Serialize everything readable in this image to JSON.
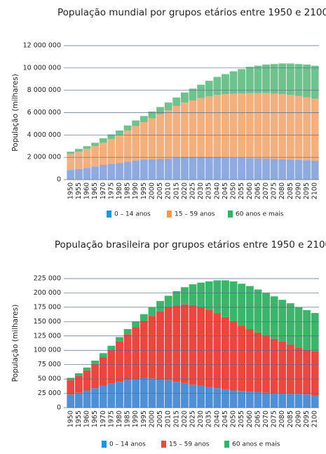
{
  "chart_data": [
    {
      "type": "stacked-bar",
      "title": "População mundial por grupos etários entre 1950 e 2100",
      "y_label": "População (milhares)",
      "x": [
        1950,
        1955,
        1960,
        1965,
        1970,
        1975,
        1980,
        1985,
        1990,
        1995,
        2000,
        2005,
        2010,
        2015,
        2020,
        2025,
        2030,
        2035,
        2040,
        2045,
        2050,
        2055,
        2060,
        2065,
        2070,
        2075,
        2080,
        2085,
        2090,
        2095,
        2100
      ],
      "series": [
        {
          "name": "0 – 14 anos",
          "color": "#8eaade",
          "legend_color": "#1b96d6",
          "values": [
            870000,
            960000,
            1050000,
            1180000,
            1320000,
            1420000,
            1500000,
            1600000,
            1720000,
            1790000,
            1830000,
            1850000,
            1880000,
            1950000,
            1980000,
            1990000,
            1990000,
            1990000,
            1980000,
            1970000,
            1960000,
            1950000,
            1930000,
            1910000,
            1890000,
            1860000,
            1830000,
            1800000,
            1770000,
            1740000,
            1700000
          ]
        },
        {
          "name": "15 – 59 anos",
          "color": "#f3b07f",
          "legend_color": "#f39a4c",
          "values": [
            1430000,
            1540000,
            1700000,
            1820000,
            1980000,
            2230000,
            2500000,
            2800000,
            3080000,
            3360000,
            3670000,
            4000000,
            4320000,
            4650000,
            4920000,
            5110000,
            5310000,
            5460000,
            5620000,
            5680000,
            5740000,
            5780000,
            5820000,
            5840000,
            5860000,
            5840000,
            5820000,
            5780000,
            5730000,
            5640000,
            5550000
          ]
        },
        {
          "name": "60 anos e mais",
          "color": "#6ec28d",
          "legend_color": "#2db36a",
          "values": [
            200000,
            250000,
            250000,
            300000,
            400000,
            400000,
            400000,
            450000,
            500000,
            550000,
            600000,
            650000,
            700000,
            750000,
            900000,
            1050000,
            1200000,
            1400000,
            1600000,
            1800000,
            2000000,
            2170000,
            2350000,
            2450000,
            2550000,
            2650000,
            2750000,
            2820000,
            2850000,
            2920000,
            2950000
          ]
        }
      ],
      "ylim": [
        0,
        12000000
      ],
      "yticks": [
        0,
        {
          "value": 2000000,
          "label": "2 000 000"
        },
        {
          "value": 4000000,
          "label": "4 000 000"
        },
        {
          "value": 6000000,
          "label": "6 000 000"
        },
        {
          "value": 8000000,
          "label": "8 000 000"
        },
        {
          "value": 10000000,
          "label": "10 000 000"
        },
        {
          "value": 12000000,
          "label": "12 000 000"
        }
      ],
      "grid": true
    },
    {
      "type": "stacked-bar",
      "title": "População brasileira por grupos etários entre 1950 e 2100",
      "y_label": "População (milhares)",
      "x": [
        1950,
        1955,
        1960,
        1965,
        1970,
        1975,
        1980,
        1985,
        1990,
        1995,
        2000,
        2005,
        2010,
        2015,
        2020,
        2025,
        2030,
        2035,
        2040,
        2045,
        2050,
        2055,
        2060,
        2065,
        2070,
        2075,
        2080,
        2085,
        2090,
        2095,
        2100
      ],
      "series": [
        {
          "name": "0 – 14 anos",
          "color": "#4f8fd3",
          "legend_color": "#1b96d6",
          "values": [
            23000,
            26000,
            30000,
            34000,
            38000,
            42000,
            45000,
            48000,
            50000,
            52000,
            51000,
            50000,
            48000,
            45000,
            43000,
            40000,
            38000,
            36000,
            34000,
            32000,
            30000,
            29000,
            28000,
            27000,
            26000,
            25000,
            25000,
            24000,
            24000,
            23000,
            22000
          ]
        },
        {
          "name": "15 – 59 anos",
          "color": "#e9473f",
          "legend_color": "#e9473f",
          "values": [
            25000,
            30000,
            35000,
            42000,
            50000,
            59000,
            70000,
            80000,
            90000,
            99000,
            109000,
            118000,
            127000,
            133000,
            137000,
            139000,
            137000,
            134000,
            131000,
            126000,
            120000,
            114000,
            109000,
            104000,
            99000,
            95000,
            90000,
            86000,
            81000,
            78000,
            76000
          ]
        },
        {
          "name": "60 anos e mais",
          "color": "#3db46b",
          "legend_color": "#2db36a",
          "values": [
            4000,
            4000,
            5000,
            6000,
            7000,
            7000,
            8000,
            9000,
            10000,
            12000,
            15000,
            18000,
            20000,
            25000,
            30000,
            36000,
            43000,
            50000,
            57000,
            64000,
            70000,
            73000,
            75000,
            75000,
            75000,
            74000,
            73000,
            72000,
            70000,
            69000,
            67000
          ]
        }
      ],
      "ylim": [
        0,
        225000
      ],
      "yticks": [
        0,
        {
          "value": 25000,
          "label": "25 000"
        },
        {
          "value": 50000,
          "label": "50 000"
        },
        {
          "value": 75000,
          "label": "75 000"
        },
        {
          "value": 100000,
          "label": "100 000"
        },
        {
          "value": 125000,
          "label": "125 000"
        },
        {
          "value": 150000,
          "label": "150 000"
        },
        {
          "value": 175000,
          "label": "175 000"
        },
        {
          "value": 200000,
          "label": "200 000"
        },
        {
          "value": 225000,
          "label": "225 000"
        }
      ],
      "grid": true
    }
  ]
}
